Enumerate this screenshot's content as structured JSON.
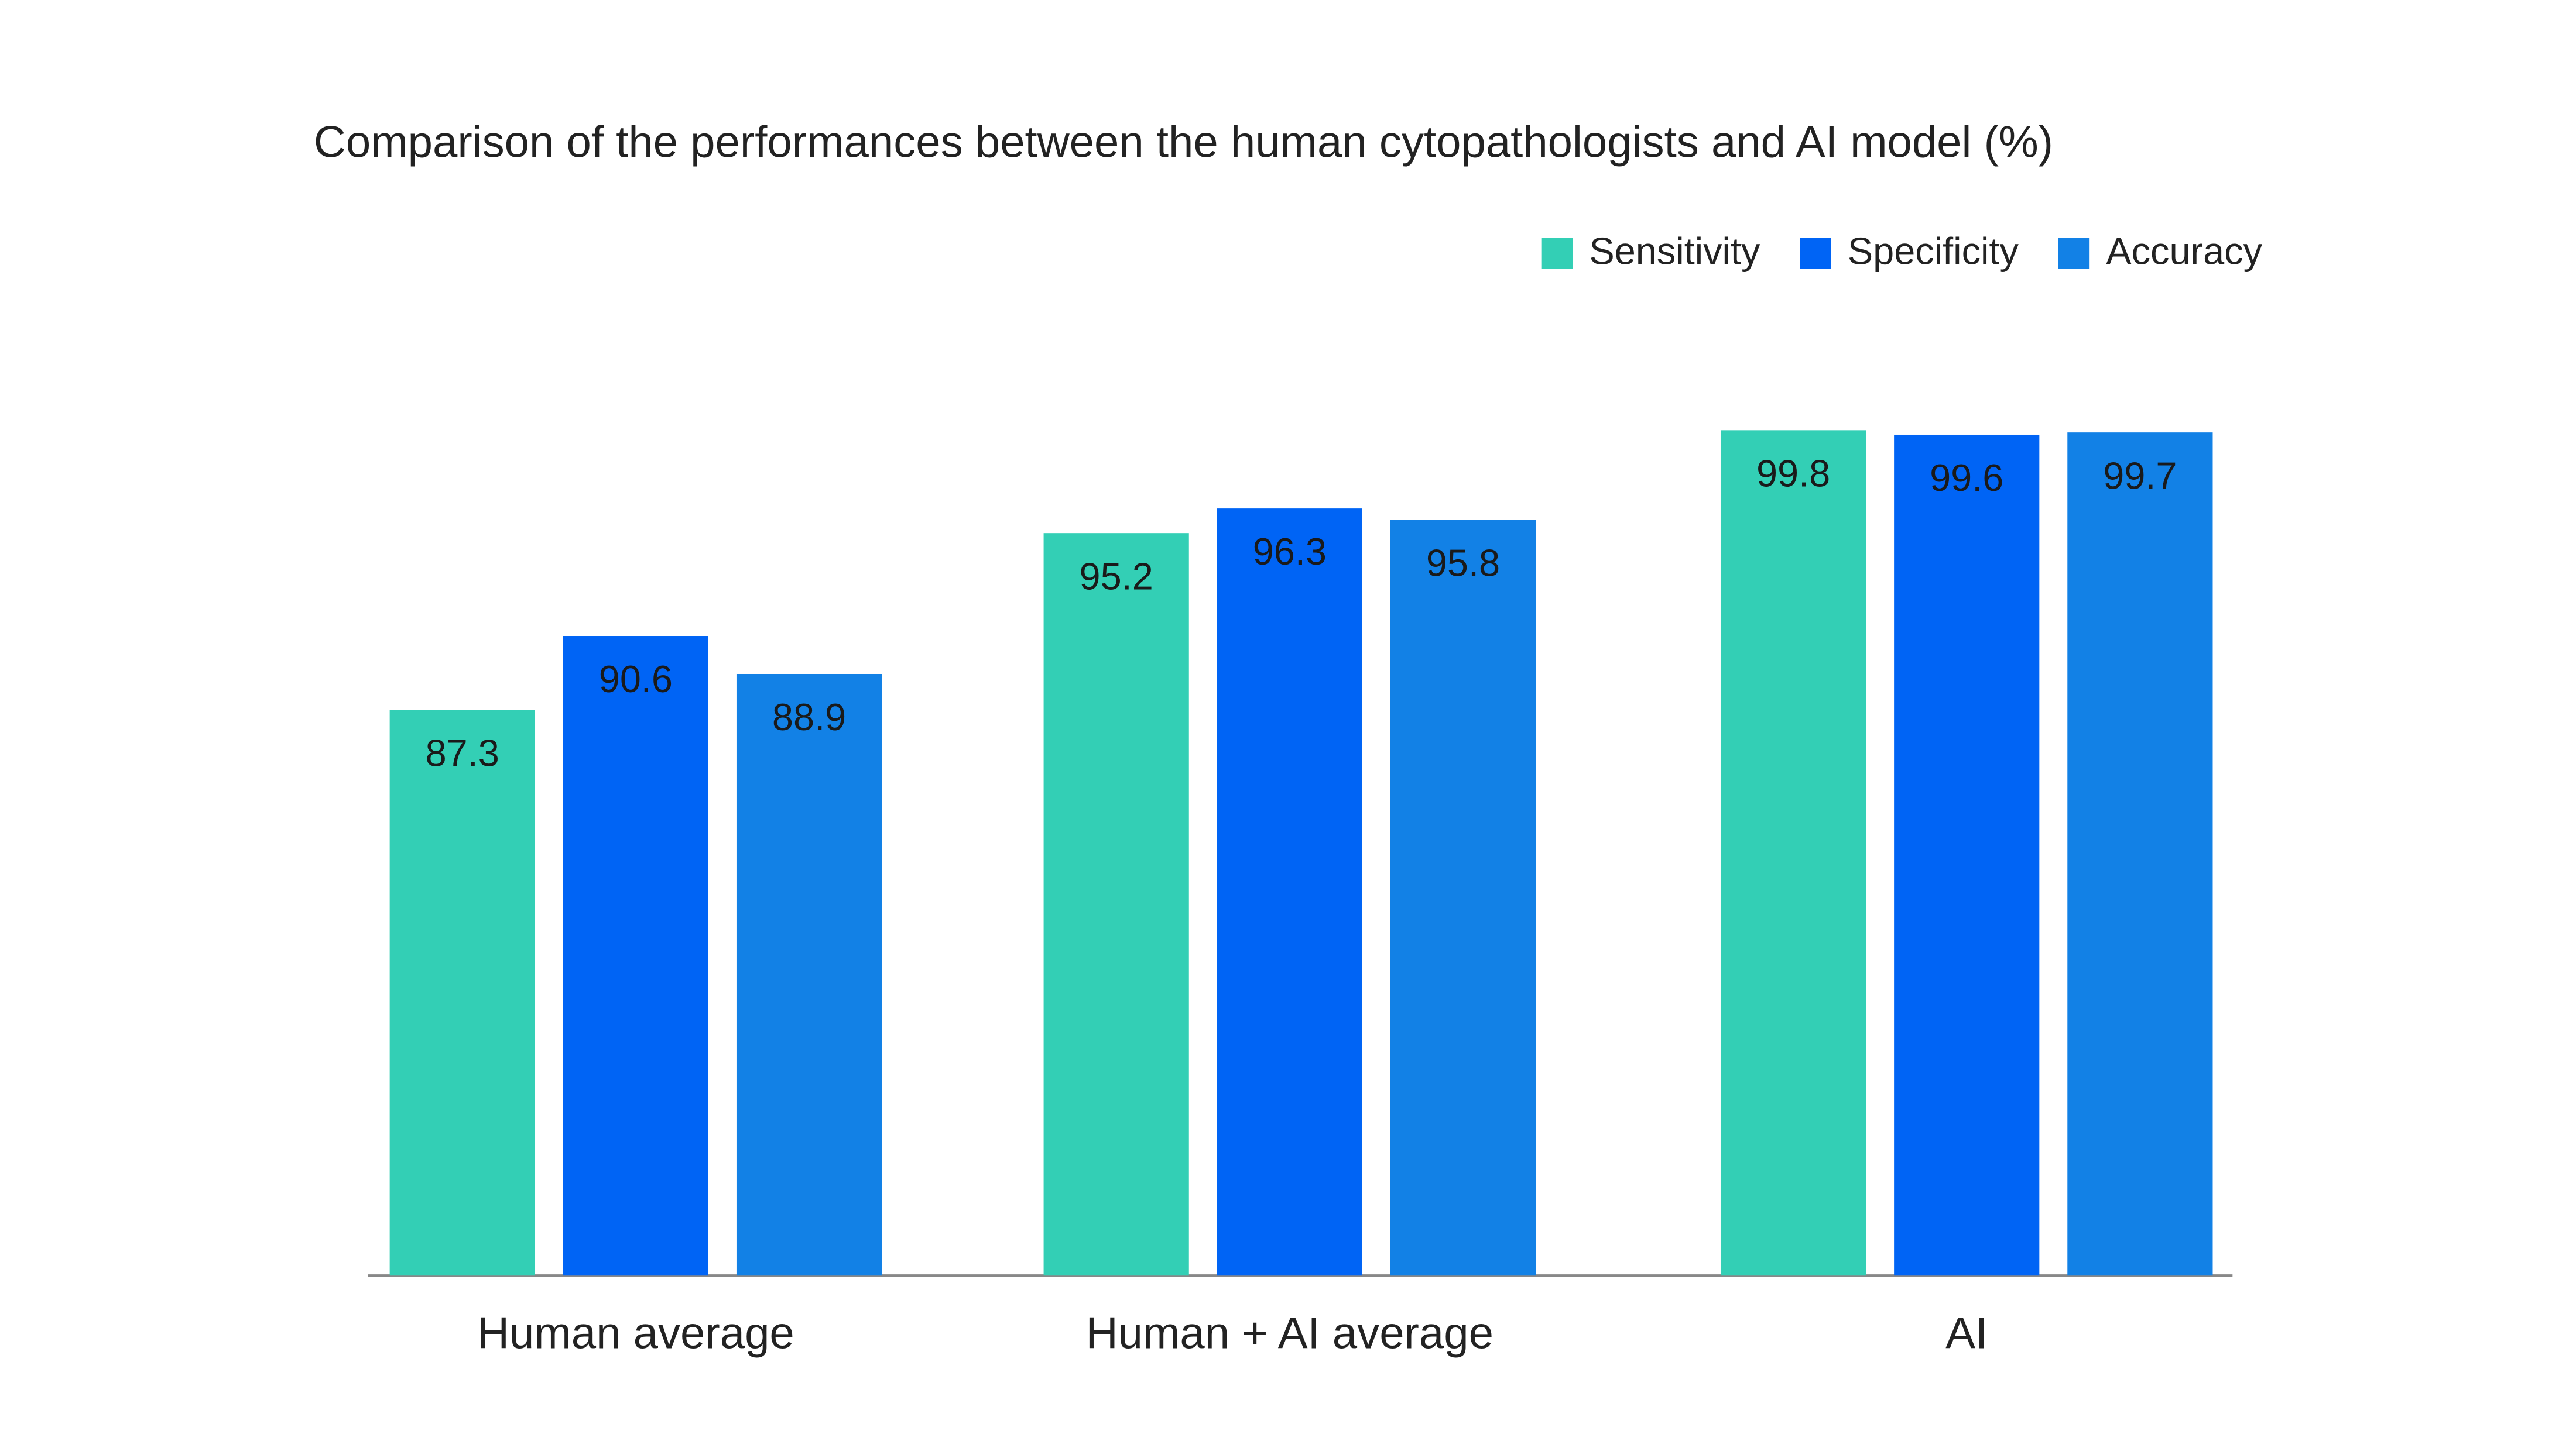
{
  "chart_data": {
    "type": "bar",
    "title": "Comparison of the performances between the human cytopathologists and AI model (%)",
    "categories": [
      "Human average",
      "Human + AI average",
      "AI"
    ],
    "series": [
      {
        "name": "Sensitivity",
        "color": "#33cfb5",
        "values": [
          87.3,
          95.2,
          99.8
        ]
      },
      {
        "name": "Specificity",
        "color": "#0064f5",
        "values": [
          90.6,
          96.3,
          99.6
        ]
      },
      {
        "name": "Accuracy",
        "color": "#1281e6",
        "values": [
          88.9,
          95.8,
          99.7
        ]
      }
    ],
    "ylim": [
      62,
      100
    ],
    "legend": "top-right"
  }
}
